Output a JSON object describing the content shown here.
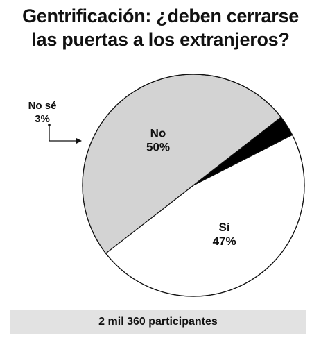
{
  "title": {
    "line1": "Gentrificación: ¿deben cerrarse",
    "line2": "las puertas a los extranjeros?"
  },
  "footer": {
    "note": "2 mil 360 participantes"
  },
  "chart_data": {
    "type": "pie",
    "title": "Gentrificación: ¿deben cerrarse las puertas a los extranjeros?",
    "slices": [
      {
        "label": "Sí",
        "value": 47,
        "value_label": "47%",
        "color": "#ffffff"
      },
      {
        "label": "No",
        "value": 50,
        "value_label": "50%",
        "color": "#d3d3d3"
      },
      {
        "label": "No sé",
        "value": 3,
        "value_label": "3%",
        "color": "#000000"
      }
    ],
    "legend": "none",
    "annotations": [
      "2 mil 360 participantes"
    ]
  }
}
